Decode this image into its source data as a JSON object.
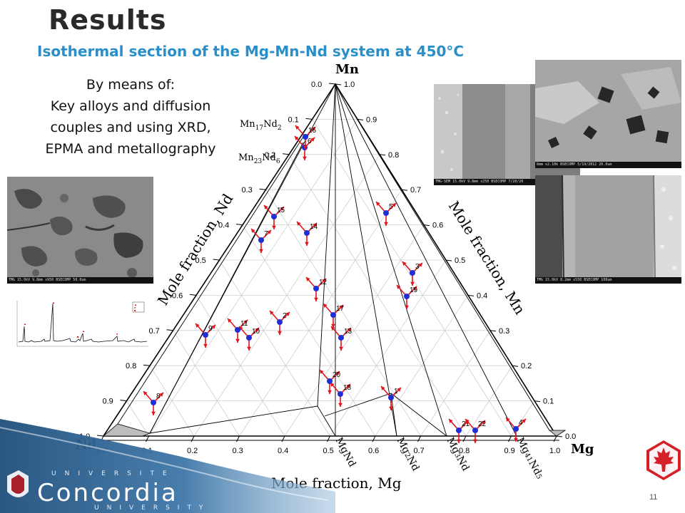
{
  "title": "Results",
  "subtitle": "Isothermal section of the Mg-Mn-Nd system at 450°C",
  "means": {
    "line1": "By means of:",
    "line2": "Key alloys and diffusion",
    "line3": "couples and using XRD,",
    "line4": "EPMA and metallography"
  },
  "diagram": {
    "vertex_top": "Mn",
    "vertex_left": "Nd",
    "vertex_right": "Mg",
    "axis_left": "Mole fraction, Nd",
    "axis_right": "Mole fraction, Mn",
    "axis_bottom": "Mole fraction, Mg",
    "ticks_bottom": [
      "0.0",
      "0.1",
      "0.2",
      "0.3",
      "0.4",
      "0.5",
      "0.6",
      "0.7",
      "0.8",
      "0.9",
      "1.0"
    ],
    "ticks_left": [
      "0.0",
      "0.1",
      "0.2",
      "0.3",
      "0.4",
      "0.5",
      "0.6",
      "0.7",
      "0.8",
      "0.9",
      "1.0"
    ],
    "ticks_right": [
      "1.0",
      "0.9",
      "0.8",
      "0.7",
      "0.6",
      "0.5",
      "0.4",
      "0.3",
      "0.2",
      "0.1",
      "0.0"
    ],
    "phases_left": [
      {
        "base": "Mn",
        "sub1": "17",
        "mid": "Nd",
        "sub2": "2"
      },
      {
        "base": "Mn",
        "sub1": "23",
        "mid": "Nd",
        "sub2": "6"
      }
    ],
    "phases_bottom": [
      {
        "base": "Mg",
        "mid": "Nd",
        "sub1": "",
        "sub2": ""
      },
      {
        "base": "Mg",
        "sub1": "2",
        "mid": "Nd",
        "sub2": ""
      },
      {
        "base": "Mg",
        "sub1": "3",
        "mid": "Nd",
        "sub2": ""
      },
      {
        "base": "Mg",
        "sub1": "41",
        "mid": "Nd",
        "sub2": "5"
      }
    ],
    "samples": [
      "1",
      "2",
      "3",
      "4",
      "5",
      "6",
      "7",
      "8",
      "9",
      "10",
      "11",
      "12",
      "13",
      "14",
      "15",
      "16",
      "17",
      "18",
      "19",
      "20",
      "21",
      "22"
    ]
  },
  "micrographs": {
    "left_caption": "TMG 15.0kV 9.8mm x950 BSECOMP                50.0um",
    "mid_caption": "TMG-SEM 15.0kV 9.8mm x250 BSECOMP 7/20/20",
    "topright_caption": "8mm x2.10k BSECOMP 5/19/2012      20.0um",
    "botright_caption": "TMG 15.0kV 8.2mm x550 BSECOMP                100um"
  },
  "xrd_legend": [
    "▲",
    "●",
    "■"
  ],
  "footer": {
    "page_number": "11",
    "university_top": "UNIVERSITE",
    "university_name": "Concordia",
    "university_bottom": "UNIVERSITY"
  },
  "colors": {
    "subtitle": "#2a8fc9",
    "sample_point": "#1f2fd6",
    "tie_arrow": "#e0141a",
    "footer_band": "#2c5f8e",
    "logo_red": "#d42027"
  }
}
